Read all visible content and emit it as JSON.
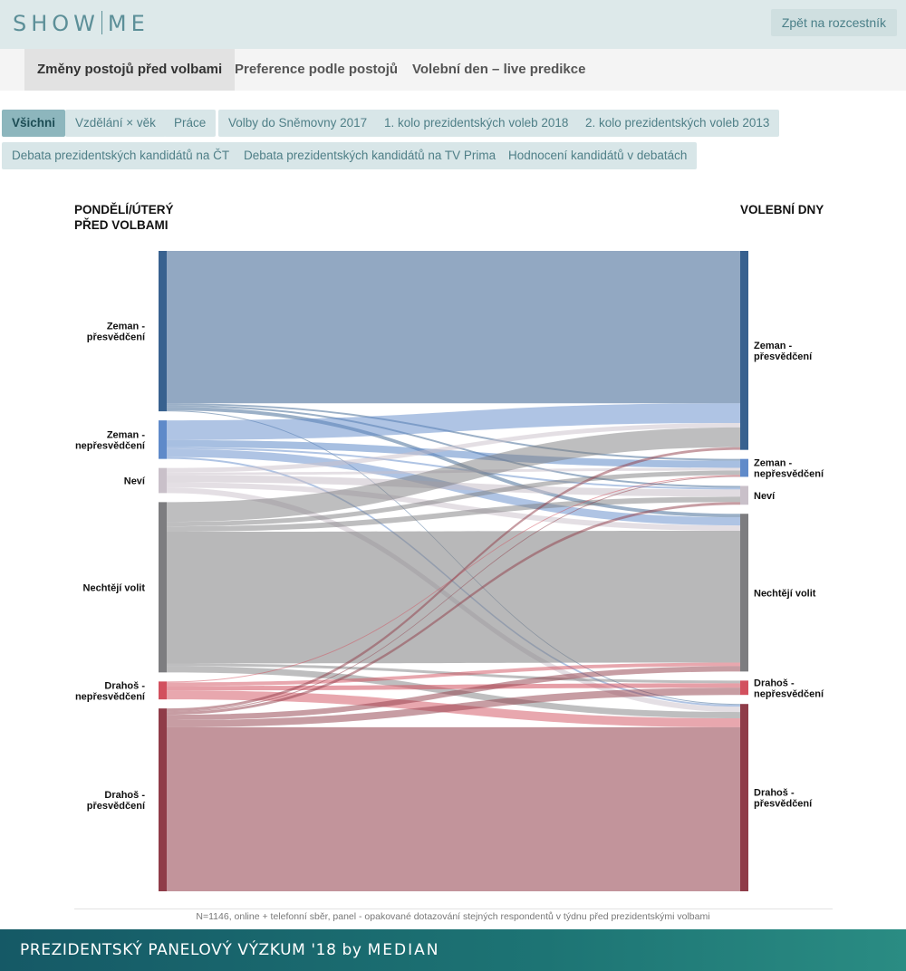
{
  "header": {
    "logo_left": "SHOW",
    "logo_right": "ME",
    "back_label": "Zpět na rozcestník"
  },
  "tabs": [
    {
      "label": "Změny postojů před volbami",
      "active": true
    },
    {
      "label": "Preference podle postojů",
      "active": false
    },
    {
      "label": "Volební den – live predikce",
      "active": false
    }
  ],
  "filters": [
    {
      "label": "Všichni",
      "active": true
    },
    {
      "label": "Vzdělání × věk",
      "active": false
    },
    {
      "label": "Práce",
      "active": false
    },
    {
      "label": "Volby do Sněmovny 2017",
      "active": false
    },
    {
      "label": "1. kolo prezidentských voleb 2018",
      "active": false
    },
    {
      "label": "2. kolo prezidentských voleb 2013",
      "active": false
    },
    {
      "label": "Debata prezidentských kandidátů na ČT",
      "active": false
    },
    {
      "label": "Debata prezidentských kandidátů na TV Prima",
      "active": false
    },
    {
      "label": "Hodnocení kandidátů v debatách",
      "active": false
    }
  ],
  "chart_data": {
    "type": "sankey",
    "left_title": "PONDĚLÍ/ÚTERÝ\nPŘED VOLBAMI",
    "right_title": "VOLEBNÍ DNY",
    "colors": {
      "zeman_p": "#38618f",
      "zeman_n": "#5f8ac9",
      "nevi": "#c9c0c9",
      "nechteji": "#7d7d80",
      "drahos_n": "#d2505e",
      "drahos_p": "#8f3c48"
    },
    "left_nodes": [
      {
        "id": "zeman_p",
        "label": "Zeman -\npřesvědčení",
        "value": 179
      },
      {
        "id": "zeman_n",
        "label": "Zeman -\nnepřesvědčení",
        "value": 43
      },
      {
        "id": "nevi",
        "label": "Neví",
        "value": 28
      },
      {
        "id": "nechteji",
        "label": "Nechtějí volit",
        "value": 190
      },
      {
        "id": "drahos_n",
        "label": "Drahoš -\nnepřesvědčení",
        "value": 20
      },
      {
        "id": "drahos_p",
        "label": "Drahoš -\npřesvědčení",
        "value": 204
      }
    ],
    "right_nodes": [
      {
        "id": "zeman_p",
        "label": "Zeman -\npřesvědčení",
        "value": 222
      },
      {
        "id": "zeman_n",
        "label": "Zeman -\nnepřesvědčení",
        "value": 20
      },
      {
        "id": "nevi",
        "label": "Neví",
        "value": 21
      },
      {
        "id": "nechteji",
        "label": "Nechtějí volit",
        "value": 176
      },
      {
        "id": "drahos_n",
        "label": "Drahoš -\nnepřesvědčení",
        "value": 16
      },
      {
        "id": "drahos_p",
        "label": "Drahoš -\npřesvědčení",
        "value": 209
      }
    ],
    "links": [
      {
        "source": "zeman_p",
        "target": "zeman_p",
        "value": 170
      },
      {
        "source": "zeman_p",
        "target": "zeman_n",
        "value": 2
      },
      {
        "source": "zeman_p",
        "target": "nevi",
        "value": 2
      },
      {
        "source": "zeman_p",
        "target": "nechteji",
        "value": 4
      },
      {
        "source": "zeman_p",
        "target": "drahos_p",
        "value": 1
      },
      {
        "source": "zeman_n",
        "target": "zeman_p",
        "value": 22
      },
      {
        "source": "zeman_n",
        "target": "zeman_n",
        "value": 8
      },
      {
        "source": "zeman_n",
        "target": "nevi",
        "value": 2
      },
      {
        "source": "zeman_n",
        "target": "nechteji",
        "value": 9
      },
      {
        "source": "zeman_n",
        "target": "drahos_p",
        "value": 2
      },
      {
        "source": "nevi",
        "target": "zeman_p",
        "value": 5
      },
      {
        "source": "nevi",
        "target": "zeman_n",
        "value": 3
      },
      {
        "source": "nevi",
        "target": "nevi",
        "value": 8
      },
      {
        "source": "nevi",
        "target": "nechteji",
        "value": 6
      },
      {
        "source": "nevi",
        "target": "drahos_p",
        "value": 6
      },
      {
        "source": "nechteji",
        "target": "zeman_p",
        "value": 22
      },
      {
        "source": "nechteji",
        "target": "zeman_n",
        "value": 5
      },
      {
        "source": "nechteji",
        "target": "nevi",
        "value": 6
      },
      {
        "source": "nechteji",
        "target": "nechteji",
        "value": 147
      },
      {
        "source": "nechteji",
        "target": "drahos_n",
        "value": 3
      },
      {
        "source": "nechteji",
        "target": "drahos_p",
        "value": 7
      },
      {
        "source": "drahos_n",
        "target": "zeman_n",
        "value": 1
      },
      {
        "source": "drahos_n",
        "target": "nechteji",
        "value": 4
      },
      {
        "source": "drahos_n",
        "target": "drahos_n",
        "value": 5
      },
      {
        "source": "drahos_n",
        "target": "drahos_p",
        "value": 10
      },
      {
        "source": "drahos_p",
        "target": "zeman_p",
        "value": 3
      },
      {
        "source": "drahos_p",
        "target": "zeman_n",
        "value": 1
      },
      {
        "source": "drahos_p",
        "target": "nevi",
        "value": 3
      },
      {
        "source": "drahos_p",
        "target": "nechteji",
        "value": 6
      },
      {
        "source": "drahos_p",
        "target": "drahos_n",
        "value": 8
      },
      {
        "source": "drahos_p",
        "target": "drahos_p",
        "value": 183
      }
    ]
  },
  "footnote": "N=1146, online + telefonní sběr, panel - opakované dotazování stejných respondentů v týdnu před prezidentskými volbami",
  "footer": {
    "title": "PREZIDENTSKÝ PANELOVÝ VÝZKUM '18",
    "by": "by",
    "brand": "MEDIAN"
  }
}
